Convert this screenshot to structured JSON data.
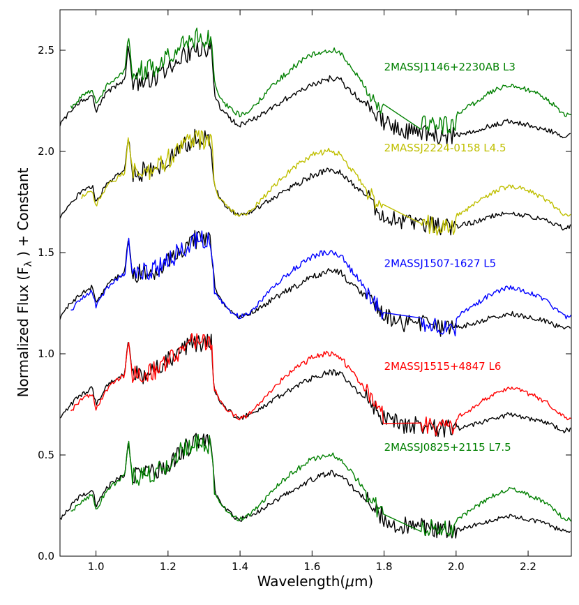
{
  "chart_data": {
    "type": "line",
    "title": "",
    "xlabel_prefix": "Wavelength(",
    "xlabel_mu": "μ",
    "xlabel_suffix": "m)",
    "ylabel_prefix": "Normalized Flux (F",
    "ylabel_sub": "λ",
    "ylabel_suffix": " ) + Constant",
    "xlim": [
      0.9,
      2.32
    ],
    "ylim": [
      0.0,
      2.7
    ],
    "xticks": [
      1.0,
      1.2,
      1.4,
      1.6,
      1.8,
      2.0,
      2.2
    ],
    "xtick_labels": [
      "1.0",
      "1.2",
      "1.4",
      "1.6",
      "1.8",
      "2.0",
      "2.2"
    ],
    "yticks": [
      0.0,
      0.5,
      1.0,
      1.5,
      2.0,
      2.5
    ],
    "ytick_labels": [
      "0.0",
      "0.5",
      "1.0",
      "1.5",
      "2.0",
      "2.5"
    ],
    "series": [
      {
        "name": "2MASSJ1146+2230AB L3",
        "color": "#008000",
        "offset": 2.0,
        "template_offset": 1.95,
        "label_y": 2.4
      },
      {
        "name": "2MASSJ2224-0158 L4.5",
        "color": "#bfbf00",
        "offset": 1.5,
        "template_offset": 1.5,
        "label_y": 2.0
      },
      {
        "name": "2MASSJ1507-1627 L5",
        "color": "#0000ff",
        "offset": 1.0,
        "template_offset": 1.0,
        "label_y": 1.43
      },
      {
        "name": "2MASSJ1515+4847 L6",
        "color": "#ff0000",
        "offset": 0.5,
        "template_offset": 0.5,
        "label_y": 0.92
      },
      {
        "name": "2MASSJ0825+2115 L7.5",
        "color": "#008000",
        "offset": 0.0,
        "template_offset": 0.0,
        "label_y": 0.52
      }
    ],
    "template_color": "#000000",
    "base_spectrum_points": [
      [
        0.9,
        0.18
      ],
      [
        0.93,
        0.25
      ],
      [
        0.96,
        0.3
      ],
      [
        0.99,
        0.33
      ],
      [
        1.0,
        0.25
      ],
      [
        1.03,
        0.34
      ],
      [
        1.06,
        0.38
      ],
      [
        1.08,
        0.4
      ],
      [
        1.09,
        0.58
      ],
      [
        1.1,
        0.4
      ],
      [
        1.13,
        0.4
      ],
      [
        1.17,
        0.42
      ],
      [
        1.2,
        0.46
      ],
      [
        1.24,
        0.52
      ],
      [
        1.27,
        0.56
      ],
      [
        1.3,
        0.56
      ],
      [
        1.32,
        0.55
      ],
      [
        1.33,
        0.32
      ],
      [
        1.35,
        0.25
      ],
      [
        1.38,
        0.2
      ],
      [
        1.4,
        0.18
      ],
      [
        1.45,
        0.22
      ],
      [
        1.5,
        0.28
      ],
      [
        1.55,
        0.33
      ],
      [
        1.6,
        0.38
      ],
      [
        1.65,
        0.41
      ],
      [
        1.68,
        0.4
      ],
      [
        1.7,
        0.36
      ],
      [
        1.75,
        0.28
      ],
      [
        1.79,
        0.2
      ],
      [
        1.82,
        0.17
      ],
      [
        1.85,
        0.15
      ],
      [
        1.9,
        0.15
      ],
      [
        1.95,
        0.13
      ],
      [
        2.0,
        0.13
      ],
      [
        2.05,
        0.15
      ],
      [
        2.1,
        0.18
      ],
      [
        2.15,
        0.2
      ],
      [
        2.2,
        0.18
      ],
      [
        2.25,
        0.16
      ],
      [
        2.3,
        0.12
      ],
      [
        2.32,
        0.13
      ]
    ]
  }
}
